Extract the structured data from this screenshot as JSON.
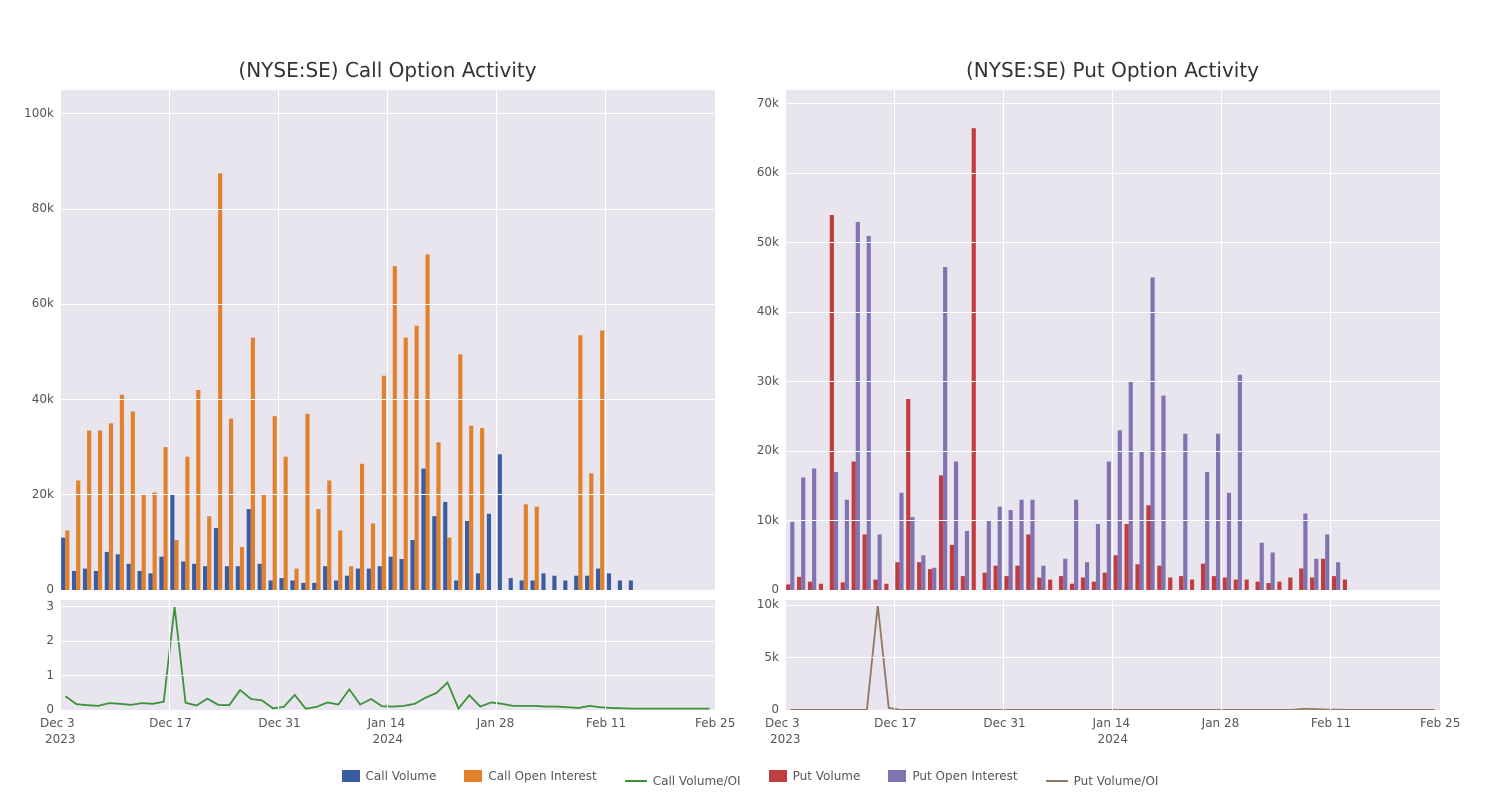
{
  "layout": {
    "figure_width": 1500,
    "figure_height": 800,
    "background_color": "#ffffff",
    "panel_bg": "#e9e5ee",
    "grid_color": "#ffffff",
    "text_color": "#555555",
    "title_color": "#333333",
    "title_fontsize": 20,
    "tick_fontsize": 12,
    "legend_fontsize": 12
  },
  "x": {
    "ticks": [
      "Dec 3",
      "Dec 17",
      "Dec 31",
      "Jan 14",
      "Jan 28",
      "Feb 11",
      "Feb 25"
    ],
    "sublabels": {
      "2023": 0,
      "2024": 3
    },
    "n_points": 60
  },
  "legend": [
    {
      "type": "swatch",
      "color": "#3b5da0",
      "label": "Call Volume"
    },
    {
      "type": "swatch",
      "color": "#e1812c",
      "label": "Call Open Interest"
    },
    {
      "type": "line",
      "color": "#3a923a",
      "label": "Call Volume/OI"
    },
    {
      "type": "swatch",
      "color": "#c03d3e",
      "label": "Put Volume"
    },
    {
      "type": "swatch",
      "color": "#8172b2",
      "label": "Put Open Interest"
    },
    {
      "type": "line",
      "color": "#937860",
      "label": "Put Volume/OI"
    }
  ],
  "left": {
    "title": "(NYSE:SE) Call Option Activity",
    "bar_panel": {
      "ylim": [
        0,
        105000
      ],
      "yticks": [
        0,
        20000,
        40000,
        60000,
        80000,
        100000
      ],
      "yticklabels": [
        "0",
        "20k",
        "40k",
        "60k",
        "80k",
        "100k"
      ],
      "series": [
        {
          "name": "Call Volume",
          "color": "#3b5da0",
          "values": [
            11000,
            4000,
            4500,
            4000,
            8000,
            7500,
            5500,
            4000,
            3500,
            7000,
            20000,
            6000,
            5500,
            5000,
            13000,
            5000,
            5000,
            17000,
            5500,
            2000,
            2500,
            2000,
            1500,
            1500,
            5000,
            2000,
            3000,
            4500,
            4500,
            5000,
            7000,
            6500,
            10500,
            25500,
            15500,
            18500,
            2000,
            14500,
            3500,
            16000,
            28500,
            2500,
            2000,
            2000,
            3500,
            3000,
            2000,
            3000,
            3000,
            4500,
            3500,
            2000,
            2000,
            0,
            0,
            0,
            0,
            0,
            0,
            0
          ]
        },
        {
          "name": "Call Open Interest",
          "color": "#e1812c",
          "values": [
            12500,
            23000,
            33500,
            33500,
            35000,
            41000,
            37500,
            20000,
            20500,
            30000,
            10500,
            28000,
            42000,
            15500,
            87500,
            36000,
            9000,
            53000,
            20000,
            36500,
            28000,
            4500,
            37000,
            17000,
            23000,
            12500,
            5000,
            26500,
            14000,
            45000,
            68000,
            53000,
            55500,
            70500,
            31000,
            11000,
            49500,
            34500,
            34000,
            0,
            0,
            0,
            18000,
            17500,
            0,
            0,
            0,
            53500,
            24500,
            54500,
            0,
            0,
            0,
            0,
            0,
            0,
            0,
            0,
            0,
            0
          ]
        }
      ]
    },
    "line_panel": {
      "ylim": [
        0,
        3.2
      ],
      "yticks": [
        0,
        1,
        2,
        3
      ],
      "yticklabels": [
        "0",
        "1",
        "2",
        "3"
      ],
      "series": {
        "name": "Call Volume/OI",
        "color": "#3a923a",
        "values": [
          0.4,
          0.17,
          0.14,
          0.12,
          0.2,
          0.18,
          0.15,
          0.2,
          0.18,
          0.24,
          3.0,
          0.21,
          0.13,
          0.33,
          0.15,
          0.14,
          0.58,
          0.32,
          0.28,
          0.05,
          0.09,
          0.44,
          0.04,
          0.09,
          0.22,
          0.16,
          0.6,
          0.16,
          0.32,
          0.11,
          0.1,
          0.12,
          0.18,
          0.36,
          0.5,
          0.8,
          0.04,
          0.43,
          0.1,
          0.22,
          0.18,
          0.12,
          0.12,
          0.12,
          0.1,
          0.1,
          0.08,
          0.06,
          0.12,
          0.08,
          0.06,
          0.05,
          0.04,
          0.04,
          0.04,
          0.04,
          0.04,
          0.04,
          0.04,
          0.04
        ]
      }
    }
  },
  "right": {
    "title": "(NYSE:SE) Put Option Activity",
    "bar_panel": {
      "ylim": [
        0,
        72000
      ],
      "yticks": [
        0,
        10000,
        20000,
        30000,
        40000,
        50000,
        60000,
        70000
      ],
      "yticklabels": [
        "0",
        "10k",
        "20k",
        "30k",
        "40k",
        "50k",
        "60k",
        "70k"
      ],
      "series": [
        {
          "name": "Put Volume",
          "color": "#c03d3e",
          "values": [
            800,
            1900,
            1200,
            900,
            54000,
            1100,
            18500,
            8000,
            1500,
            900,
            4000,
            27500,
            4000,
            3000,
            16500,
            6500,
            2000,
            66500,
            2500,
            3500,
            2000,
            3500,
            8000,
            1800,
            1500,
            2000,
            900,
            1800,
            1200,
            2500,
            5000,
            9500,
            3700,
            12200,
            3500,
            1800,
            2000,
            1500,
            3800,
            2000,
            1800,
            1500,
            1500,
            1200,
            1000,
            1200,
            1800,
            3100,
            1800,
            4500,
            2000,
            1500,
            0,
            0,
            0,
            0,
            0,
            0,
            0,
            0
          ]
        },
        {
          "name": "Put Open Interest",
          "color": "#8172b2",
          "values": [
            9800,
            16200,
            17500,
            0,
            17000,
            13000,
            53000,
            51000,
            8000,
            0,
            14000,
            10500,
            5000,
            3200,
            46500,
            18500,
            8500,
            0,
            10000,
            12000,
            11500,
            13000,
            13000,
            3500,
            0,
            4500,
            13000,
            4000,
            9500,
            18500,
            23000,
            30000,
            20000,
            45000,
            28000,
            0,
            22500,
            0,
            17000,
            22500,
            14000,
            31000,
            0,
            6800,
            5400,
            0,
            0,
            11000,
            4500,
            8000,
            4000,
            0,
            0,
            0,
            0,
            0,
            0,
            0,
            0,
            0
          ]
        }
      ]
    },
    "line_panel": {
      "ylim": [
        0,
        10500
      ],
      "yticks": [
        0,
        5000,
        10000
      ],
      "yticklabels": [
        "0",
        "5k",
        "10k"
      ],
      "series": {
        "name": "Put Volume/OI",
        "color": "#937860",
        "values": [
          10,
          10,
          10,
          10,
          10,
          10,
          10,
          10,
          10000,
          200,
          10,
          10,
          10,
          10,
          10,
          10,
          10,
          10,
          10,
          10,
          10,
          10,
          10,
          10,
          10,
          10,
          10,
          10,
          10,
          10,
          10,
          10,
          10,
          10,
          10,
          10,
          10,
          10,
          10,
          10,
          10,
          10,
          10,
          10,
          10,
          10,
          10,
          120,
          80,
          50,
          30,
          10,
          10,
          10,
          10,
          10,
          10,
          10,
          10,
          10
        ]
      }
    }
  }
}
